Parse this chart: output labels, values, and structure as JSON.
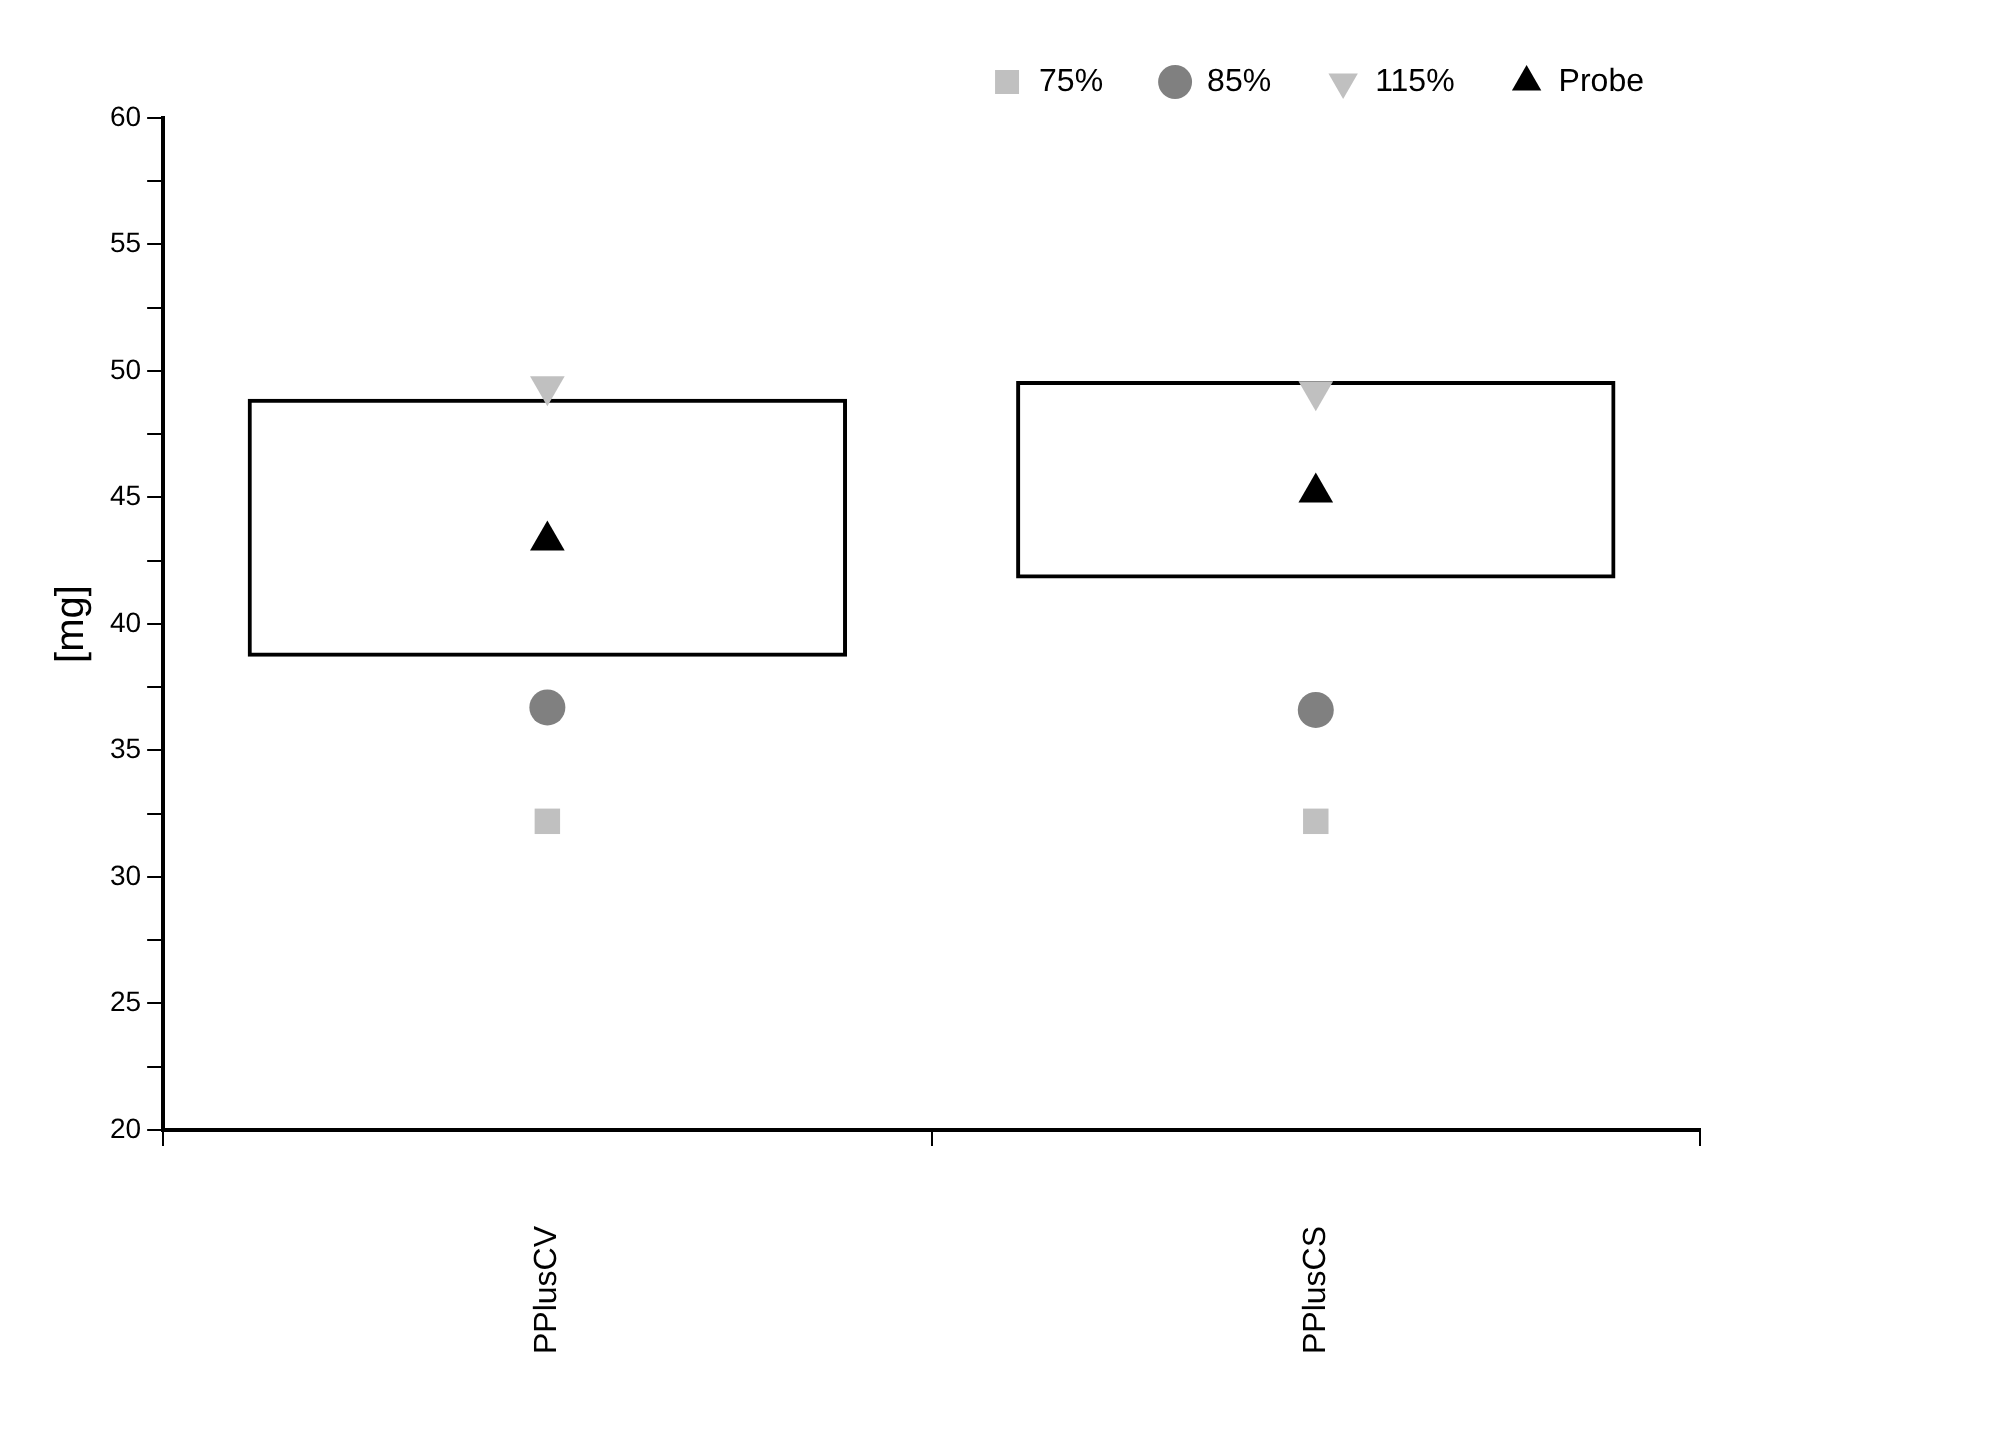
{
  "chart_data": {
    "type": "bar",
    "ylabel": "[mg]",
    "categories": [
      "PPlusCV",
      "PPlusCS"
    ],
    "base": [
      38.7,
      41.8
    ],
    "values": [
      10.2,
      7.8
    ],
    "color": "#000000",
    "series": [
      {
        "type": "scatter",
        "name": "75%",
        "color": "#c0c0c0",
        "marker": "square",
        "x": [
          "PPlusCV",
          "PPlusCS"
        ],
        "values": [
          32.2,
          32.2
        ]
      },
      {
        "type": "scatter",
        "name": "85%",
        "color": "#808080",
        "marker": "circle",
        "x": [
          "PPlusCV",
          "PPlusCS"
        ],
        "values": [
          36.7,
          36.6
        ]
      },
      {
        "type": "scatter",
        "name": "115%",
        "color": "#c0c0c0",
        "marker": "triangle-down",
        "x": [
          "PPlusCV",
          "PPlusCS"
        ],
        "values": [
          49.4,
          49.2
        ]
      },
      {
        "type": "scatter",
        "name": "Probe",
        "color": "#000000",
        "marker": "triangle",
        "x": [
          "PPlusCV",
          "PPlusCS"
        ],
        "values": [
          43.3,
          45.2
        ]
      }
    ],
    "ylim": [
      20,
      60
    ],
    "yticks": [
      20,
      {
        "value": 22.5,
        "label": null
      },
      25,
      {
        "value": 27.5,
        "label": null
      },
      30,
      {
        "value": 32.5,
        "label": null
      },
      35,
      {
        "value": 37.5,
        "label": null
      },
      40,
      {
        "value": 42.5,
        "label": null
      },
      45,
      {
        "value": 47.5,
        "label": null
      },
      50,
      {
        "value": 52.5,
        "label": null
      },
      55,
      {
        "value": 57.5,
        "label": null
      },
      60
    ],
    "grid": false,
    "legend": "top right"
  }
}
